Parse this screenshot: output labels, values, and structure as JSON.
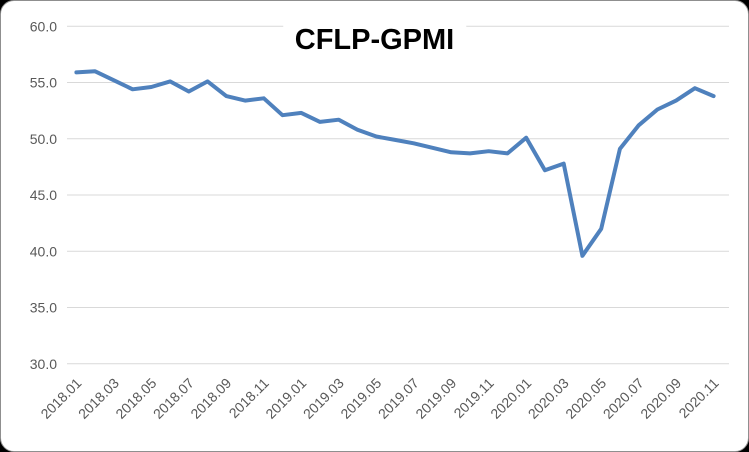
{
  "window": {
    "background_color": "#000000",
    "card_background": "#FFFFFF"
  },
  "chart_data": {
    "type": "line",
    "title": "CFLP-GPMI",
    "xlabel": "",
    "ylabel": "",
    "ylim": [
      30,
      60
    ],
    "yticks": [
      30,
      35,
      40,
      45,
      50,
      55,
      60
    ],
    "ytick_labels": [
      "30.0",
      "35.0",
      "40.0",
      "45.0",
      "50.0",
      "55.0",
      "60.0"
    ],
    "grid": "horizontal-only",
    "legend": "none",
    "x_tick_label_rotation_deg": -45,
    "x_tick_labels_shown": [
      "2018.01",
      "2018.03",
      "2018.05",
      "2018.07",
      "2018.09",
      "2018.11",
      "2019.01",
      "2019.03",
      "2019.05",
      "2019.07",
      "2019.09",
      "2019.11",
      "2020.01",
      "2020.03",
      "2020.05",
      "2020.07",
      "2020.09",
      "2020.11"
    ],
    "x": [
      "2018.01",
      "2018.02",
      "2018.03",
      "2018.04",
      "2018.05",
      "2018.06",
      "2018.07",
      "2018.08",
      "2018.09",
      "2018.10",
      "2018.11",
      "2018.12",
      "2019.01",
      "2019.02",
      "2019.03",
      "2019.04",
      "2019.05",
      "2019.06",
      "2019.07",
      "2019.08",
      "2019.09",
      "2019.10",
      "2019.11",
      "2019.12",
      "2020.01",
      "2020.02",
      "2020.03",
      "2020.04",
      "2020.05",
      "2020.06",
      "2020.07",
      "2020.08",
      "2020.09",
      "2020.10",
      "2020.11"
    ],
    "series": [
      {
        "name": "CFLP-GPMI",
        "color": "#4F81BD",
        "values": [
          55.9,
          56.0,
          55.2,
          54.4,
          54.6,
          55.1,
          54.2,
          55.1,
          53.8,
          53.4,
          53.6,
          52.1,
          52.3,
          51.5,
          51.7,
          50.8,
          50.2,
          49.9,
          49.6,
          49.2,
          48.8,
          48.7,
          48.9,
          48.7,
          50.1,
          47.2,
          47.8,
          39.6,
          42.0,
          49.1,
          51.2,
          52.6,
          53.4,
          54.5,
          53.8
        ]
      }
    ],
    "colors": {
      "line": "#4F81BD",
      "gridline": "#D9D9D9",
      "axis_text": "#595959",
      "title_text": "#000000",
      "plot_background": "#FFFFFF"
    }
  }
}
